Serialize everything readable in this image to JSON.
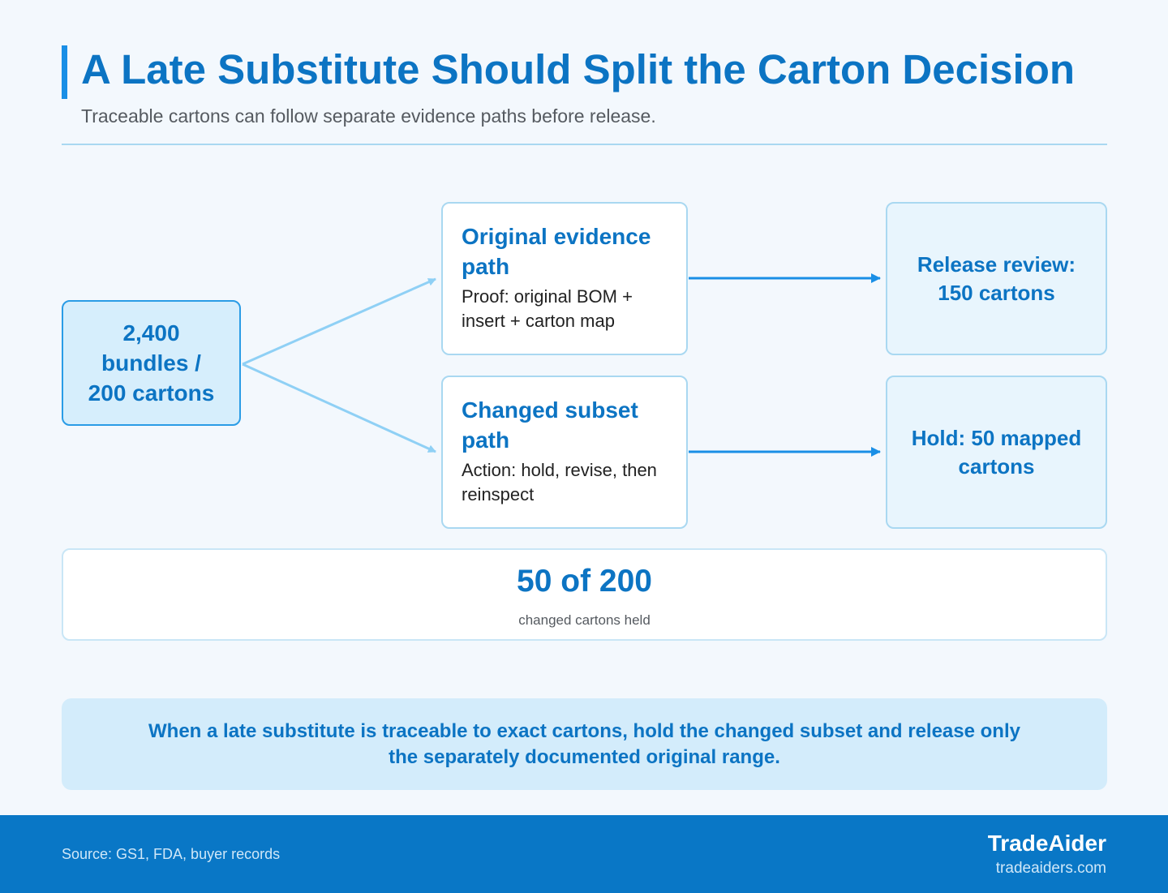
{
  "header": {
    "title": "A Late Substitute Should Split the Carton Decision",
    "subtitle": "Traceable cartons can follow separate evidence paths before release."
  },
  "diagram": {
    "source": {
      "label": "2,400 bundles / 200 cartons"
    },
    "paths": [
      {
        "heading": "Original evidence path",
        "detail": "Proof: original BOM + insert + carton map"
      },
      {
        "heading": "Changed subset path",
        "detail": "Action: hold, revise, then reinspect"
      }
    ],
    "outcomes": [
      {
        "label": "Release review: 150 cartons"
      },
      {
        "label": "Hold: 50 mapped cartons"
      }
    ]
  },
  "stat": {
    "value": "50 of 200",
    "label": "changed cartons held"
  },
  "callout": {
    "text": "When a late substitute is traceable to exact cartons, hold the changed subset and release only the separately documented original range."
  },
  "footer": {
    "source": "Source: GS1, FDA, buyer records",
    "brand": "TradeAider",
    "url": "tradeaiders.com"
  },
  "colors": {
    "accent": "#0c74c3",
    "bar": "#1a8fe6",
    "branch_arrow": "#8fd0f5",
    "flow_arrow": "#1a8fe6",
    "footer_bg": "#0977c6"
  }
}
